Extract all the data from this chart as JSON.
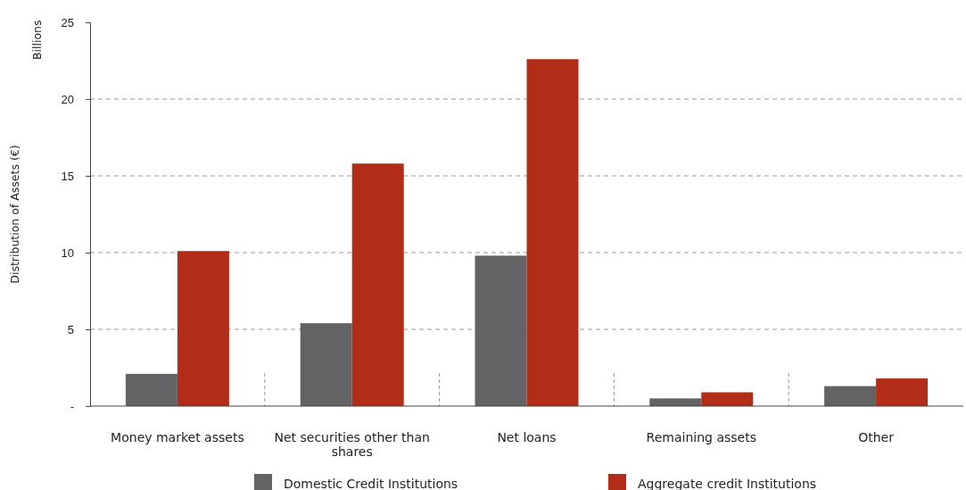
{
  "chart_data": {
    "type": "bar",
    "ylabel": "Distribution of Assets (€)",
    "annotations": [
      "Billions"
    ],
    "categories": [
      "Money market assets",
      "Net securities other than shares",
      "Net loans",
      "Remaining assets",
      "Other"
    ],
    "series": [
      {
        "name": "Domestic Credit Institutions",
        "color": "#636365",
        "values": [
          2.1,
          5.4,
          9.8,
          0.5,
          1.3
        ]
      },
      {
        "name": "Aggregate credit Institutions",
        "color": "#b22d17",
        "values": [
          10.1,
          15.8,
          22.6,
          0.9,
          1.8
        ]
      }
    ],
    "ylim": [
      0,
      25
    ],
    "yticks": [
      {
        "value": 0,
        "label": "-"
      },
      5,
      10,
      15,
      20,
      25
    ],
    "grid": "y",
    "legend": "bottom"
  }
}
